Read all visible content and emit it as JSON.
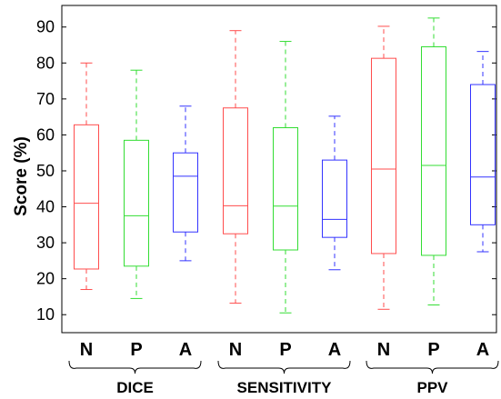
{
  "chart_data": {
    "type": "box",
    "ylabel": "Score (%)",
    "ylim": [
      5,
      96
    ],
    "yticks": [
      10,
      20,
      30,
      40,
      50,
      60,
      70,
      80,
      90
    ],
    "grid": false,
    "colors": {
      "N": "#ff4d4d",
      "P": "#33dd33",
      "A": "#3333ff"
    },
    "groups": [
      {
        "label": "DICE",
        "boxes": [
          {
            "label": "N",
            "whisker_low": 17,
            "q1": 22.7,
            "median": 41,
            "q3": 62.8,
            "whisker_high": 80
          },
          {
            "label": "P",
            "whisker_low": 14.5,
            "q1": 23.5,
            "median": 37.5,
            "q3": 58.5,
            "whisker_high": 78
          },
          {
            "label": "A",
            "whisker_low": 25,
            "q1": 33,
            "median": 48.5,
            "q3": 55,
            "whisker_high": 68
          }
        ]
      },
      {
        "label": "SENSITIVITY",
        "boxes": [
          {
            "label": "N",
            "whisker_low": 13.2,
            "q1": 32.5,
            "median": 40.3,
            "q3": 67.5,
            "whisker_high": 89
          },
          {
            "label": "P",
            "whisker_low": 10.5,
            "q1": 28,
            "median": 40.2,
            "q3": 62,
            "whisker_high": 86
          },
          {
            "label": "A",
            "whisker_low": 22.5,
            "q1": 31.5,
            "median": 36.5,
            "q3": 53,
            "whisker_high": 65.2
          }
        ]
      },
      {
        "label": "PPV",
        "boxes": [
          {
            "label": "N",
            "whisker_low": 11.5,
            "q1": 27,
            "median": 50.5,
            "q3": 81.3,
            "whisker_high": 90.2
          },
          {
            "label": "P",
            "whisker_low": 12.7,
            "q1": 26.5,
            "median": 51.5,
            "q3": 84.5,
            "whisker_high": 92.5
          },
          {
            "label": "A",
            "whisker_low": 27.5,
            "q1": 35,
            "median": 48.3,
            "q3": 74,
            "whisker_high": 83.2
          }
        ]
      }
    ]
  }
}
